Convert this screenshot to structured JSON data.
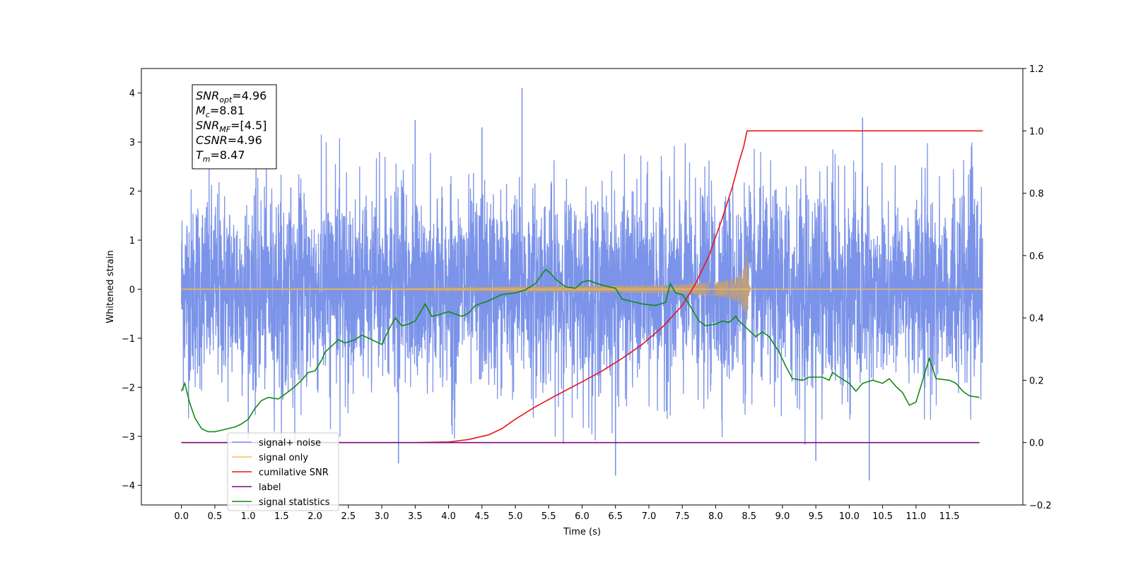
{
  "chart_data": {
    "type": "line",
    "xlabel": "Time (s)",
    "ylabel": "Whitened strain",
    "xlim": [
      -0.6,
      12.6
    ],
    "ylim": [
      -4.4,
      4.5
    ],
    "ylim_right": [
      -0.2,
      1.2
    ],
    "x_ticks": [
      "0.0",
      "0.5",
      "1.0",
      "1.5",
      "2.0",
      "2.5",
      "3.0",
      "3.5",
      "4.0",
      "4.5",
      "5.0",
      "5.5",
      "6.0",
      "6.5",
      "7.0",
      "7.5",
      "8.0",
      "8.5",
      "9.0",
      "9.5",
      "10.0",
      "10.5",
      "11.0",
      "11.5"
    ],
    "y_ticks": [
      "4",
      "3",
      "2",
      "1",
      "0",
      "−1",
      "−2",
      "−3",
      "−4"
    ],
    "y_ticks_right": [
      "1.2",
      "1.0",
      "0.8",
      "0.6",
      "0.4",
      "0.2",
      "0.0",
      "−0.2"
    ],
    "grid": false,
    "legend_position": "lower-left",
    "info_box": {
      "lines": [
        {
          "main": "SNR",
          "sub": "opt",
          "value": "=4.96"
        },
        {
          "main": "M",
          "sub": "c",
          "value": "=8.81"
        },
        {
          "main": "SNR",
          "sub": "MF",
          "value": "=[4.5]"
        },
        {
          "main": "CSNR",
          "sub": "",
          "value": "=4.96"
        },
        {
          "main": "T",
          "sub": "m",
          "value": "=8.47"
        }
      ]
    },
    "series": [
      {
        "name": "signal+ noise",
        "color": "#7b93e8",
        "axis": "left",
        "kind": "noise",
        "x_range": [
          0.0,
          12.0
        ],
        "std": 1.0,
        "outlier_peaks": [
          [
            5.1,
            4.1
          ],
          [
            10.2,
            3.5
          ],
          [
            3.5,
            3.45
          ],
          [
            4.5,
            3.3
          ],
          [
            6.5,
            -3.8
          ],
          [
            10.3,
            -3.9
          ],
          [
            3.25,
            -3.55
          ],
          [
            9.5,
            -3.5
          ]
        ]
      },
      {
        "name": "signal only",
        "color": "#f5c25a",
        "axis": "left",
        "kind": "chirp",
        "x_range": [
          0.0,
          12.0
        ],
        "merger_time": 8.47,
        "peak_amplitude": 0.78
      },
      {
        "name": "cumilative SNR",
        "color": "#e8141c",
        "axis": "right",
        "x": [
          0.0,
          3.5,
          4.0,
          4.3,
          4.6,
          4.8,
          5.0,
          5.3,
          5.6,
          6.0,
          6.3,
          6.6,
          6.9,
          7.2,
          7.5,
          7.7,
          7.9,
          8.1,
          8.25,
          8.35,
          8.42,
          8.47,
          8.6,
          12.0
        ],
        "values": [
          0.0,
          0.0,
          0.002,
          0.01,
          0.025,
          0.045,
          0.075,
          0.115,
          0.15,
          0.195,
          0.23,
          0.27,
          0.315,
          0.37,
          0.44,
          0.51,
          0.6,
          0.72,
          0.82,
          0.9,
          0.95,
          1.0,
          1.0,
          1.0
        ]
      },
      {
        "name": "label",
        "color": "#7b0f7d",
        "axis": "right",
        "x": [
          0.0,
          11.95
        ],
        "values": [
          0.0,
          0.0
        ]
      },
      {
        "name": "signal statistics",
        "color": "#138a13",
        "axis": "right",
        "x": [
          0.0,
          0.05,
          0.12,
          0.2,
          0.3,
          0.4,
          0.5,
          0.6,
          0.7,
          0.8,
          0.9,
          1.0,
          1.1,
          1.2,
          1.3,
          1.45,
          1.55,
          1.7,
          1.8,
          1.9,
          2.0,
          2.1,
          2.15,
          2.25,
          2.35,
          2.45,
          2.6,
          2.7,
          2.85,
          3.0,
          3.1,
          3.2,
          3.3,
          3.4,
          3.5,
          3.65,
          3.75,
          3.85,
          4.0,
          4.2,
          4.3,
          4.4,
          4.6,
          4.8,
          5.0,
          5.15,
          5.3,
          5.45,
          5.52,
          5.6,
          5.75,
          5.9,
          6.0,
          6.1,
          6.3,
          6.5,
          6.6,
          6.7,
          6.9,
          7.1,
          7.25,
          7.32,
          7.4,
          7.5,
          7.6,
          7.75,
          7.85,
          8.0,
          8.1,
          8.2,
          8.3,
          8.35,
          8.45,
          8.6,
          8.7,
          8.8,
          8.95,
          9.05,
          9.15,
          9.3,
          9.4,
          9.6,
          9.7,
          9.75,
          9.85,
          10.0,
          10.1,
          10.2,
          10.35,
          10.5,
          10.6,
          10.7,
          10.8,
          10.9,
          11.0,
          11.1,
          11.2,
          11.3,
          11.5,
          11.6,
          11.7,
          11.8,
          11.95
        ],
        "values": [
          0.165,
          0.19,
          0.13,
          0.08,
          0.045,
          0.035,
          0.035,
          0.04,
          0.045,
          0.05,
          0.06,
          0.075,
          0.11,
          0.135,
          0.145,
          0.14,
          0.155,
          0.18,
          0.2,
          0.225,
          0.23,
          0.265,
          0.29,
          0.31,
          0.33,
          0.32,
          0.33,
          0.345,
          0.33,
          0.315,
          0.36,
          0.4,
          0.375,
          0.38,
          0.39,
          0.445,
          0.405,
          0.41,
          0.42,
          0.405,
          0.415,
          0.44,
          0.455,
          0.475,
          0.48,
          0.49,
          0.51,
          0.555,
          0.545,
          0.525,
          0.5,
          0.495,
          0.515,
          0.52,
          0.505,
          0.495,
          0.46,
          0.455,
          0.445,
          0.44,
          0.45,
          0.51,
          0.48,
          0.475,
          0.445,
          0.39,
          0.375,
          0.38,
          0.39,
          0.385,
          0.405,
          0.39,
          0.37,
          0.34,
          0.355,
          0.34,
          0.29,
          0.245,
          0.205,
          0.2,
          0.21,
          0.21,
          0.2,
          0.225,
          0.21,
          0.19,
          0.165,
          0.19,
          0.2,
          0.19,
          0.205,
          0.18,
          0.16,
          0.12,
          0.13,
          0.2,
          0.27,
          0.205,
          0.2,
          0.19,
          0.165,
          0.15,
          0.145
        ]
      }
    ]
  }
}
